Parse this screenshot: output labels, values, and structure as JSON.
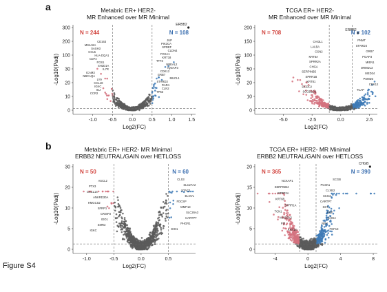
{
  "panel_labels": [
    "a",
    "b"
  ],
  "figure_label": "Figure S4",
  "colors": {
    "down": "#d4717e",
    "up": "#3e7ab6",
    "neutral": "#5a5a5a",
    "down_text": "#d2453f",
    "up_text": "#3b6fb0"
  },
  "chart_data": [
    {
      "type": "scatter",
      "title": "Metabric ER+ HER2-",
      "subtitle": "MR Enhanced over MR Minimal",
      "xlabel": "Log2(FC)",
      "ylabel": "-Log10(Padj)",
      "xlim": [
        -1.5,
        1.6
      ],
      "x_ticks": [
        -1.0,
        -0.5,
        0.0,
        0.5,
        1.0,
        1.5
      ],
      "y_ticks": [
        0,
        10,
        20,
        30,
        100,
        200,
        300
      ],
      "y_scale": "compressed-log",
      "thresholds": {
        "x": [
          -0.5,
          0.5
        ],
        "y": 1.3
      },
      "counts": {
        "down": "N = 244",
        "up": "N = 108"
      },
      "x_spread": 0.22,
      "outlier": {
        "label": "ERBB2",
        "x": 1.42,
        "y": 300
      },
      "labels_left": [
        "CD163",
        "MS4A6A",
        "SASH3",
        "CCL5",
        "HLA-DQA1",
        "CD74",
        "FGS1",
        "SH2D1A",
        "IL7R",
        "ICAM3",
        "NBCAQA",
        "LY9",
        "CCL18",
        "IGKC",
        "IGJ",
        "CCR2"
      ],
      "labels_right": [
        "JUP",
        "PIK3CA",
        "SPDEF",
        "CLDN4",
        "FOXA1",
        "KRT18",
        "TFF3",
        "NBEAL2",
        "IQGAP3",
        "CDK12",
        "GRB7",
        "MUCL1",
        "STARD3",
        "RARA",
        "CLN2",
        "TP53"
      ]
    },
    {
      "type": "scatter",
      "title": "TCGA ER+ HER2-",
      "subtitle": "MR Enhanced over MR Minimal",
      "xlabel": "Log2(FC)",
      "ylabel": "-Log10(Padj)",
      "xlim": [
        -7.5,
        3.2
      ],
      "x_ticks": [
        -5.0,
        -2.5,
        0.0,
        2.5
      ],
      "y_ticks": [
        0,
        10,
        20,
        50,
        100,
        150,
        200
      ],
      "y_scale": "compressed-log",
      "thresholds": {
        "x": [
          -1.0,
          1.0
        ],
        "y": 1.3
      },
      "counts": {
        "down": "N = 708",
        "up": "N = 102"
      },
      "x_spread": 1.1,
      "outlier": {
        "label": "ERBB2",
        "x": 1.5,
        "y": 180
      },
      "labels_left": [
        "CHI3L1",
        "LALBA",
        "CSN2",
        "KRT6A",
        "SPRR2A",
        "CHGA",
        "SERPINB5",
        "SPRR1B",
        "KRT81",
        "DCDC2",
        "SCGB1D2"
      ],
      "labels_right": [
        "PNMT",
        "STARD3",
        "GRB7",
        "PGAP3",
        "MIEN1",
        "ORMDL3",
        "MED24",
        "PSMD3",
        "CDK12",
        "TCAP"
      ]
    },
    {
      "type": "scatter",
      "title": "Metabric ER+ HER2- MR Minimal",
      "subtitle": "ERBB2 NEUTRAL/GAIN over HETLOSS",
      "xlabel": "Log2(FC)",
      "ylabel": "-Log10(Padj)",
      "xlim": [
        -1.25,
        1.0
      ],
      "x_ticks": [
        -1.0,
        -0.5,
        0.0,
        0.5
      ],
      "y_ticks": [
        0,
        5,
        10,
        20,
        30
      ],
      "y_scale": "compressed-log",
      "thresholds": {
        "x": [
          -0.5,
          0.5
        ],
        "y": 1.3
      },
      "counts": {
        "down": "N = 50",
        "up": "N = 60"
      },
      "x_spread": 0.2,
      "outlier": null,
      "labels_left": [
        "ASCL2",
        "PTX3",
        "CXCL14",
        "ANKRD30A",
        "HMGCS2",
        "SFRP1",
        "CRISP3",
        "IDO1",
        "SMR3",
        "IGKC"
      ],
      "labels_right": [
        "CLS3",
        "SLC27A2",
        "STAC2",
        "ELOVL",
        "FDCSP",
        "MMP13",
        "SLC26A3",
        "CARTPT",
        "PHGR1",
        "DIO1"
      ]
    },
    {
      "type": "scatter",
      "title": "TCGA ER+ HER2- MR Minimal",
      "subtitle": "ERBB2 NEUTRAL/GAIN over HETLOSS",
      "xlabel": "Log2(FC)",
      "ylabel": "-Log10(Padj)",
      "xlim": [
        -6.5,
        8.5
      ],
      "x_ticks": [
        -4,
        0,
        4,
        8
      ],
      "y_ticks": [
        0,
        5,
        10,
        15,
        20
      ],
      "y_scale": "compressed-log",
      "thresholds": {
        "x": [
          -1.0,
          1.0
        ],
        "y": 1.3
      },
      "counts": {
        "down": "N = 365",
        "up": "N = 390"
      },
      "x_spread": 1.4,
      "outlier": {
        "label": "CHGB",
        "x": 7.6,
        "y": 20
      },
      "labels_left": [
        "NCKAP1",
        "SERPINB4",
        "SPRR2A",
        "KRT6B",
        "SPRR1A",
        "TCN1",
        "MAGEA3",
        "PI3",
        "KRT16"
      ],
      "labels_right": [
        "SCGB",
        "PCSK1",
        "CLXB2",
        "SCG3",
        "CARTPT",
        "SST",
        "VGF",
        "CHGA",
        "NPY",
        "FGF13"
      ]
    }
  ]
}
